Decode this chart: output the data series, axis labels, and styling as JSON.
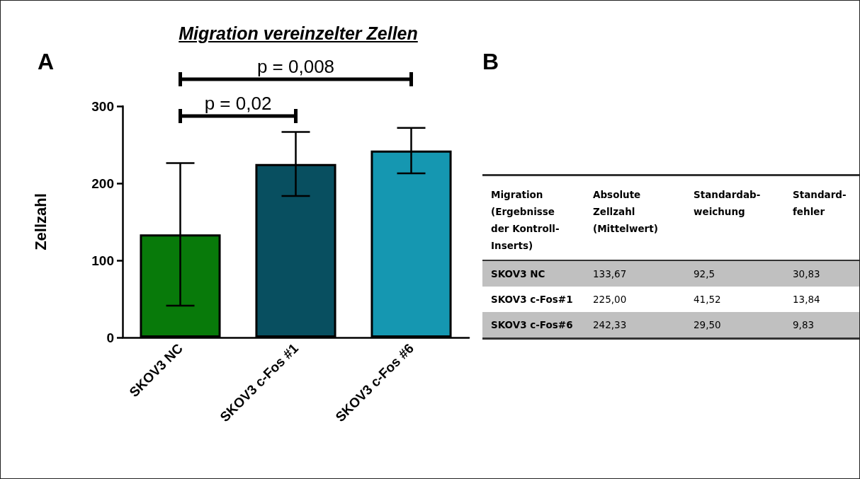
{
  "chart_data": [
    {
      "type": "bar",
      "title": "Migration vereinzelter Zellen",
      "ylabel": "Zellzahl",
      "categories": [
        "SKOV3 NC",
        "SKOV3 c-Fos #1",
        "SKOV3 c-Fos #6"
      ],
      "values": [
        133.67,
        225.0,
        242.33
      ],
      "errors": [
        92.5,
        41.52,
        29.5
      ],
      "colors": [
        "#087a0a",
        "#084f60",
        "#1597b1"
      ],
      "ylim": [
        0,
        300
      ],
      "yticks": [
        0,
        100,
        200,
        300
      ],
      "annotations": [
        "A",
        "p = 0,02",
        "p = 0,008"
      ]
    },
    {
      "type": "other",
      "title": "B",
      "annotations": [
        "Migration\n(Ergebnisse\nder Kontroll-\nInserts)",
        "Absolute\nZellzahl\n(Mittelwert)",
        "Standardab-\nweichung",
        "Standard-\nfehler",
        "SKOV3 NC",
        "133,67",
        "92,5",
        "30,83",
        "SKOV3 c-Fos#1",
        "225,00",
        "41,52",
        "13,84",
        "SKOV3 c-Fos#6",
        "242,33",
        "29,50",
        "9,83"
      ]
    }
  ]
}
